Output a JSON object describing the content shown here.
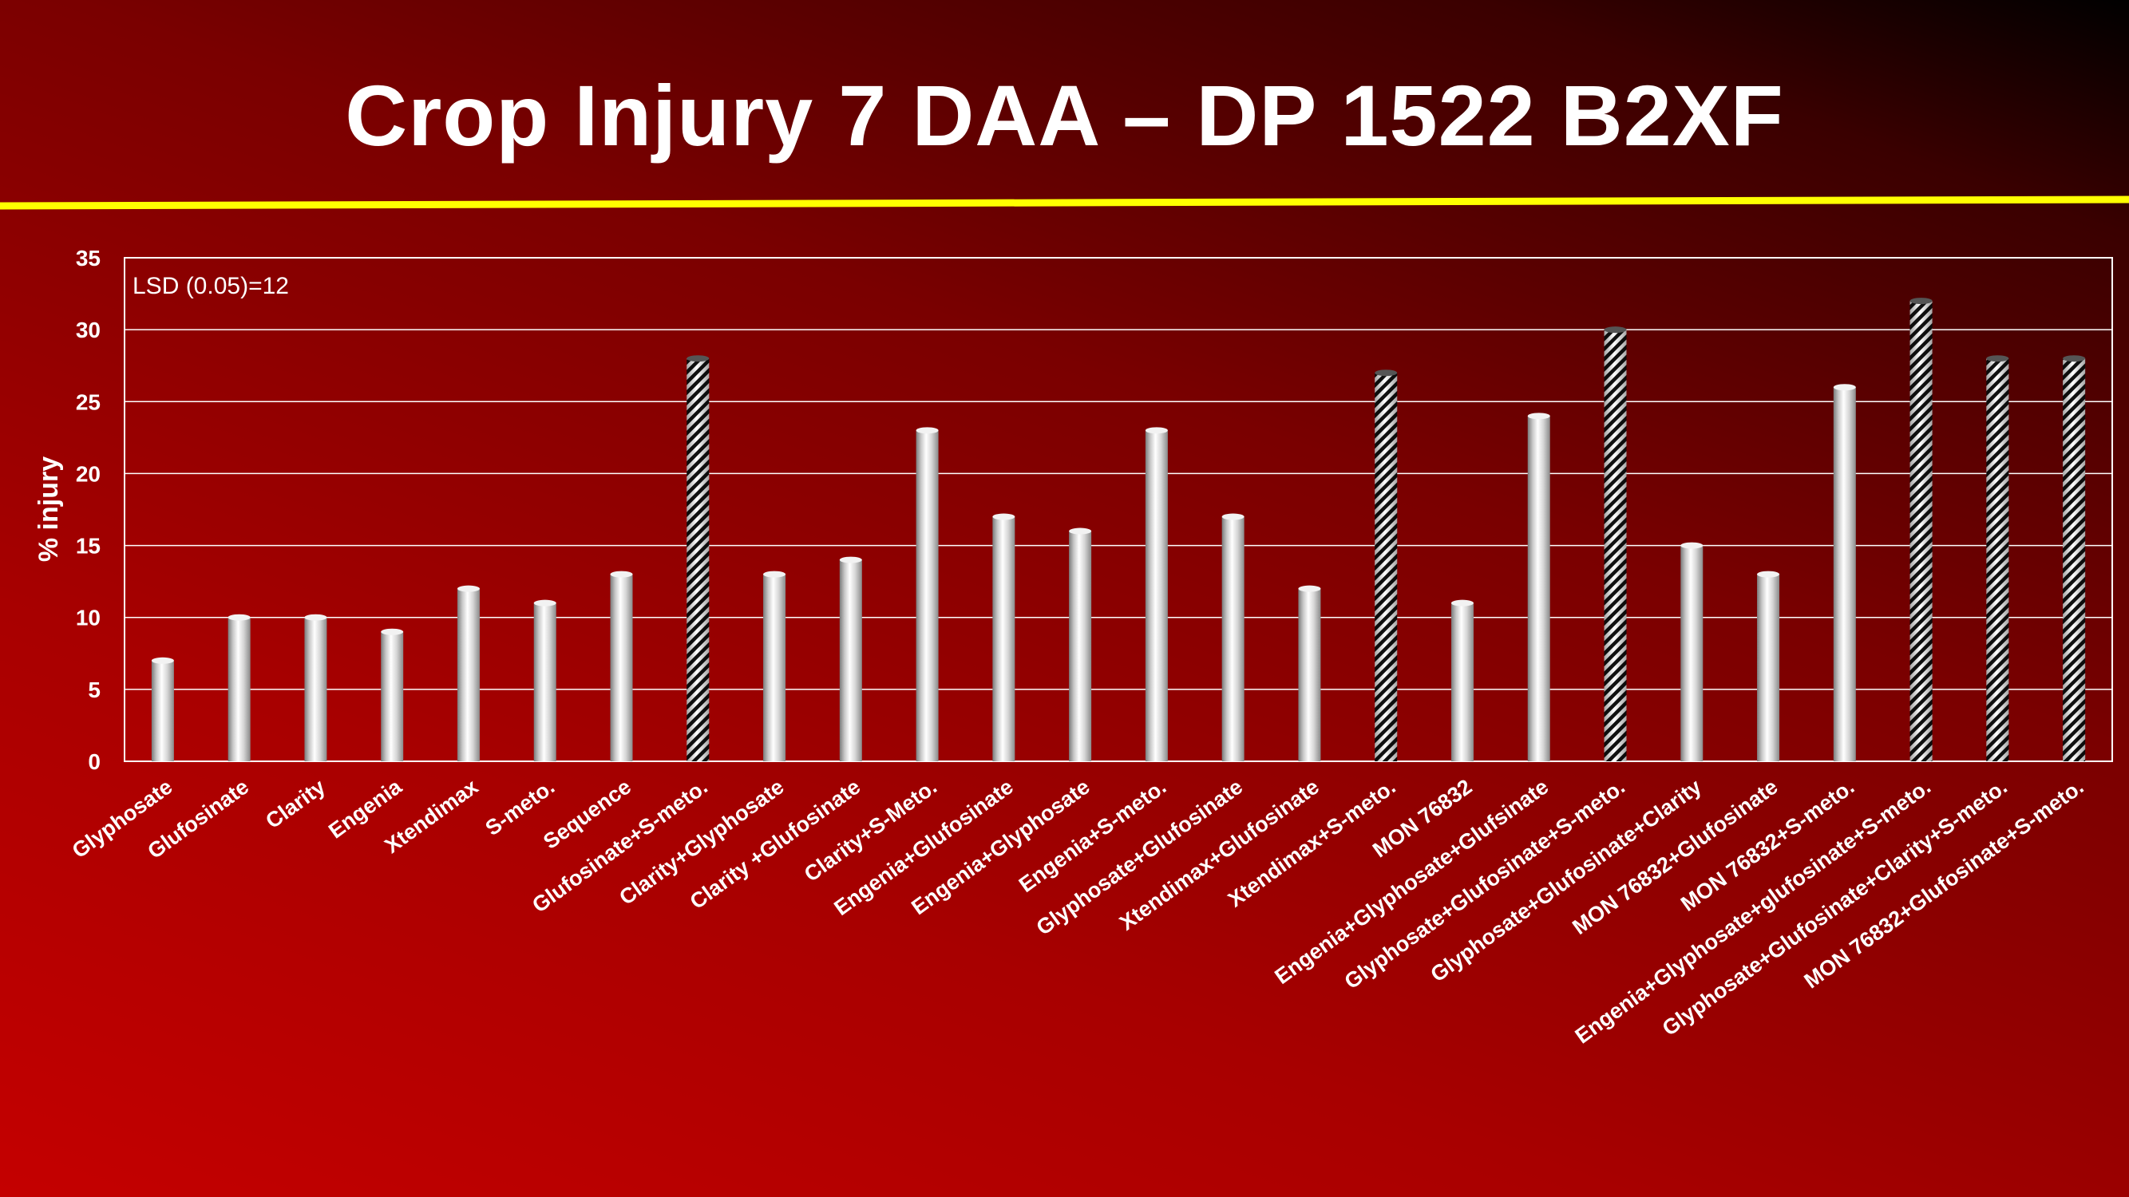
{
  "slide": {
    "title": "Crop Injury 7 DAA – DP 1522 B2XF"
  },
  "colors": {
    "divider": "#ffff00",
    "text": "#ffffff",
    "bar_solid": "silver-gradient",
    "bar_hatched": "black-white-diagonal-stripes"
  },
  "chart_data": {
    "type": "bar",
    "ylabel": "% injury",
    "xlabel": "",
    "ylim": [
      0,
      35
    ],
    "yticks": [
      0,
      5,
      10,
      15,
      20,
      25,
      30,
      35
    ],
    "grid": true,
    "annotation": "LSD (0.05)=12",
    "categories": [
      "Glyphosate",
      "Glufosinate",
      "Clarity",
      "Engenia",
      "Xtendimax",
      "S-meto.",
      "Sequence",
      "Glufosinate+S-meto.",
      "Clarity+Glyphosate",
      "Clarity +Glufosinate",
      "Clarity+S-Meto.",
      "Engenia+Glufosinate",
      "Engenia+Glyphosate",
      "Engenia+S-meto.",
      "Glyphosate+Glufosinate",
      "Xtendimax+Glufosinate",
      "Xtendimax+S-meto.",
      "MON 76832",
      "Engenia+Glyphosate+Glufsinate",
      "Glyphosate+Glufosinate+S-meto.",
      "Glyphosate+Glufosinate+Clarity",
      "MON 76832+Glufosinate",
      "MON 76832+S-meto.",
      "Engenia+Glyphosate+glufosinate+S-meto.",
      "Glyphosate+Glufosinate+Clarity+S-meto.",
      "MON 76832+Glufosinate+S-meto."
    ],
    "values": [
      7,
      10,
      10,
      9,
      12,
      11,
      13,
      28,
      13,
      14,
      23,
      17,
      16,
      23,
      17,
      12,
      27,
      11,
      24,
      30,
      15,
      13,
      26,
      32,
      28,
      28
    ],
    "hatched": [
      false,
      false,
      false,
      false,
      false,
      false,
      false,
      true,
      false,
      false,
      false,
      false,
      false,
      false,
      false,
      false,
      true,
      false,
      false,
      true,
      false,
      false,
      false,
      true,
      true,
      true
    ]
  }
}
